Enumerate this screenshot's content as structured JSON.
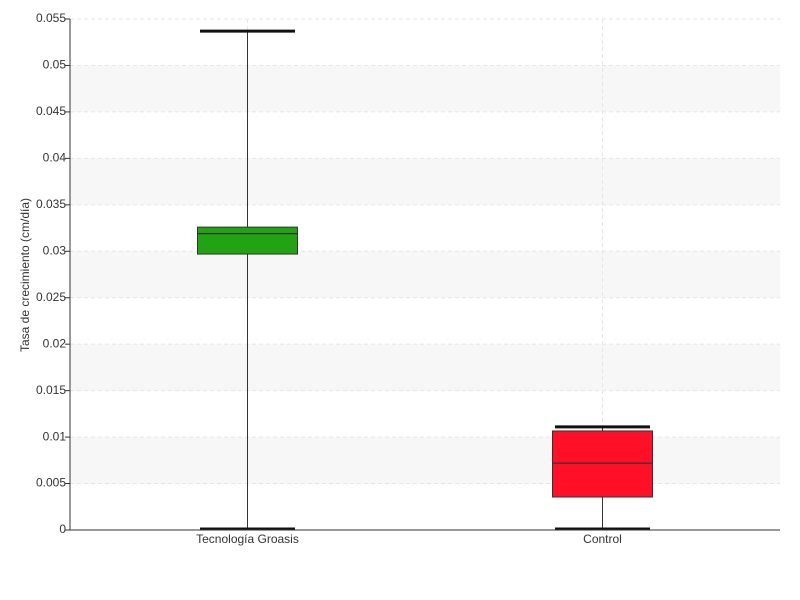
{
  "chart_data": {
    "type": "box",
    "y_label": "Tasa de crecimiento (cm/día)",
    "categories": [
      "Tecnología Groasis",
      "Control"
    ],
    "colors": [
      "#22a314",
      "#ff1026"
    ],
    "boxes": [
      {
        "min": 0,
        "q1": 0.0297,
        "median": 0.0319,
        "q3": 0.0326,
        "max": 0.0537
      },
      {
        "min": 0,
        "q1": 0.00355,
        "median": 0.0072,
        "q3": 0.01066,
        "max": 0.0111
      }
    ],
    "ylim": [
      0,
      0.055
    ],
    "yticks": [
      0,
      0.005,
      0.01,
      0.015,
      0.02,
      0.025,
      0.03,
      0.035,
      0.04,
      0.045,
      0.05,
      0.055
    ],
    "grid": true
  }
}
